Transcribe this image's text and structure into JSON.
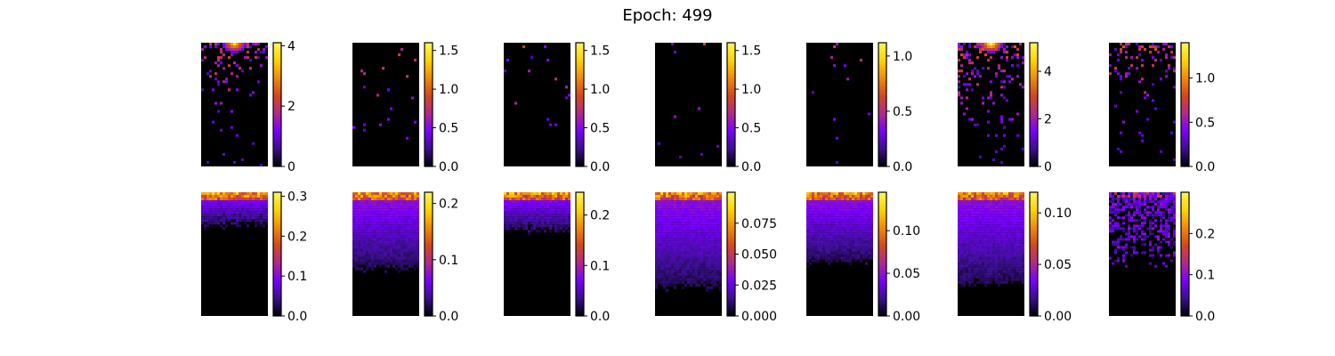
{
  "figure": {
    "title": "Epoch: 499"
  },
  "colormap": [
    "#000000",
    "#3b0f8f",
    "#7a00ff",
    "#b02a8a",
    "#d4481f",
    "#f08a0a",
    "#ffd400",
    "#fff55a"
  ],
  "chart_data": [
    {
      "type": "heatmap",
      "row": 1,
      "col": 1,
      "pattern": "sparse",
      "seed": 11,
      "density": 0.22,
      "hot": 0.9,
      "vmax": 4.1,
      "ticks": [
        0,
        2,
        4
      ],
      "tick_labels": [
        "0",
        "2",
        "4"
      ]
    },
    {
      "type": "heatmap",
      "row": 1,
      "col": 2,
      "pattern": "sparse",
      "seed": 23,
      "density": 0.025,
      "hot": 0.0,
      "vmax": 1.6,
      "ticks": [
        0.0,
        0.5,
        1.0,
        1.5
      ],
      "tick_labels": [
        "0.0",
        "0.5",
        "1.0",
        "1.5"
      ]
    },
    {
      "type": "heatmap",
      "row": 1,
      "col": 3,
      "pattern": "sparse",
      "seed": 37,
      "density": 0.03,
      "hot": 0.0,
      "vmax": 1.6,
      "ticks": [
        0.0,
        0.5,
        1.0,
        1.5
      ],
      "tick_labels": [
        "0.0",
        "0.5",
        "1.0",
        "1.5"
      ]
    },
    {
      "type": "heatmap",
      "row": 1,
      "col": 4,
      "pattern": "sparse",
      "seed": 41,
      "density": 0.015,
      "hot": 0.0,
      "vmax": 1.6,
      "ticks": [
        0.0,
        0.5,
        1.0,
        1.5
      ],
      "tick_labels": [
        "0.0",
        "0.5",
        "1.0",
        "1.5"
      ]
    },
    {
      "type": "heatmap",
      "row": 1,
      "col": 5,
      "pattern": "sparse",
      "seed": 53,
      "density": 0.03,
      "hot": 0.0,
      "vmax": 1.12,
      "ticks": [
        0.0,
        0.5,
        1.0
      ],
      "tick_labels": [
        "0.0",
        "0.5",
        "1.0"
      ]
    },
    {
      "type": "heatmap",
      "row": 1,
      "col": 6,
      "pattern": "sparse",
      "seed": 67,
      "density": 0.3,
      "hot": 1.0,
      "vmax": 5.2,
      "ticks": [
        0,
        2,
        4
      ],
      "tick_labels": [
        "0",
        "2",
        "4"
      ]
    },
    {
      "type": "heatmap",
      "row": 1,
      "col": 7,
      "pattern": "sparse",
      "seed": 79,
      "density": 0.25,
      "hot": 0.0,
      "vmax": 1.4,
      "ticks": [
        0.0,
        0.5,
        1.0
      ],
      "tick_labels": [
        "0.0",
        "0.5",
        "1.0"
      ]
    },
    {
      "type": "heatmap",
      "row": 2,
      "col": 1,
      "pattern": "dense",
      "seed": 83,
      "depth": 0.25,
      "vmax": 0.31,
      "ticks": [
        0.0,
        0.1,
        0.2,
        0.3
      ],
      "tick_labels": [
        "0.0",
        "0.1",
        "0.2",
        "0.3"
      ]
    },
    {
      "type": "heatmap",
      "row": 2,
      "col": 2,
      "pattern": "dense",
      "seed": 97,
      "depth": 0.6,
      "vmax": 0.22,
      "ticks": [
        0.0,
        0.1,
        0.2
      ],
      "tick_labels": [
        "0.0",
        "0.1",
        "0.2"
      ]
    },
    {
      "type": "heatmap",
      "row": 2,
      "col": 3,
      "pattern": "dense",
      "seed": 101,
      "depth": 0.3,
      "vmax": 0.245,
      "ticks": [
        0.0,
        0.1,
        0.2
      ],
      "tick_labels": [
        "0.0",
        "0.1",
        "0.2"
      ]
    },
    {
      "type": "heatmap",
      "row": 2,
      "col": 4,
      "pattern": "dense",
      "seed": 113,
      "depth": 0.75,
      "vmax": 0.1,
      "ticks": [
        0.0,
        0.025,
        0.05,
        0.075
      ],
      "tick_labels": [
        "0.000",
        "0.025",
        "0.050",
        "0.075"
      ]
    },
    {
      "type": "heatmap",
      "row": 2,
      "col": 5,
      "pattern": "dense",
      "seed": 127,
      "depth": 0.55,
      "vmax": 0.145,
      "ticks": [
        0.0,
        0.05,
        0.1
      ],
      "tick_labels": [
        "0.00",
        "0.05",
        "0.10"
      ]
    },
    {
      "type": "heatmap",
      "row": 2,
      "col": 6,
      "pattern": "dense",
      "seed": 131,
      "depth": 0.72,
      "vmax": 0.12,
      "ticks": [
        0.0,
        0.05,
        0.1
      ],
      "tick_labels": [
        "0.00",
        "0.05",
        "0.10"
      ]
    },
    {
      "type": "heatmap",
      "row": 2,
      "col": 7,
      "pattern": "patchy",
      "seed": 139,
      "depth": 0.6,
      "vmax": 0.3,
      "ticks": [
        0.0,
        0.1,
        0.2
      ],
      "tick_labels": [
        "0.0",
        "0.1",
        "0.2"
      ]
    }
  ]
}
